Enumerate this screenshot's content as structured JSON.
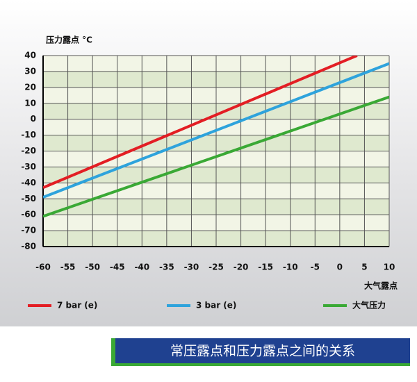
{
  "chart_data": {
    "type": "line",
    "ylabel": "压力露点 °C",
    "xlabel": "大气露点",
    "xlim": [
      -60,
      10
    ],
    "xticks": [
      -60,
      -55,
      -50,
      -45,
      -40,
      -35,
      -30,
      -25,
      -20,
      -15,
      -10,
      -5,
      0,
      5,
      10
    ],
    "ylim": [
      -80,
      40
    ],
    "yticks": [
      -80,
      -70,
      -60,
      -50,
      -40,
      -30,
      -20,
      -10,
      0,
      10,
      20,
      30,
      40
    ],
    "grid": true,
    "series": [
      {
        "name": "7 bar (e)",
        "color": "#e31e24",
        "x": [
          -60,
          3.5
        ],
        "values": [
          -43,
          40
        ]
      },
      {
        "name": "3 bar (e)",
        "color": "#2ea3dc",
        "x": [
          -60,
          10
        ],
        "values": [
          -49,
          35
        ]
      },
      {
        "name": "大气压力",
        "color": "#3aa935",
        "x": [
          -60,
          10
        ],
        "values": [
          -61,
          14
        ]
      }
    ]
  },
  "caption": "常压露点和压力露点之间的关系"
}
